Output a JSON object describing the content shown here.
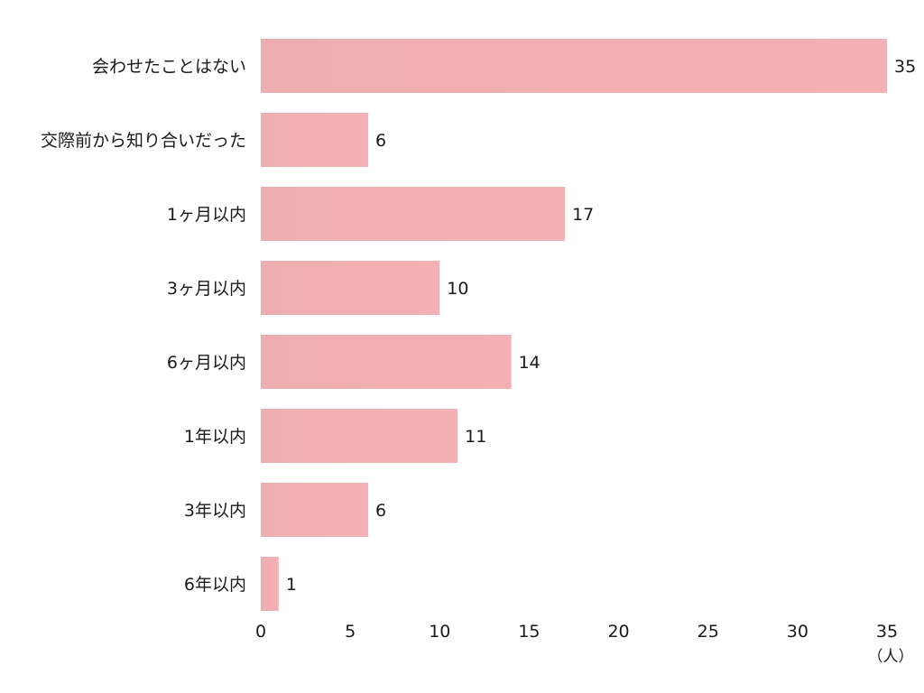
{
  "chart_data": {
    "type": "bar",
    "orientation": "horizontal",
    "categories": [
      "会わせたことはない",
      "交際前から知り合いだった",
      "1ヶ月以内",
      "3ヶ月以内",
      "6ヶ月以内",
      "1年以内",
      "3年以内",
      "6年以内"
    ],
    "values": [
      35,
      6,
      17,
      10,
      14,
      11,
      6,
      1
    ],
    "xlim": [
      0,
      35
    ],
    "xticks": [
      0,
      5,
      10,
      15,
      20,
      25,
      30,
      35
    ],
    "xunit": "（人）",
    "grid": false,
    "legend": "none",
    "bar_color": "#f2b0b4"
  }
}
